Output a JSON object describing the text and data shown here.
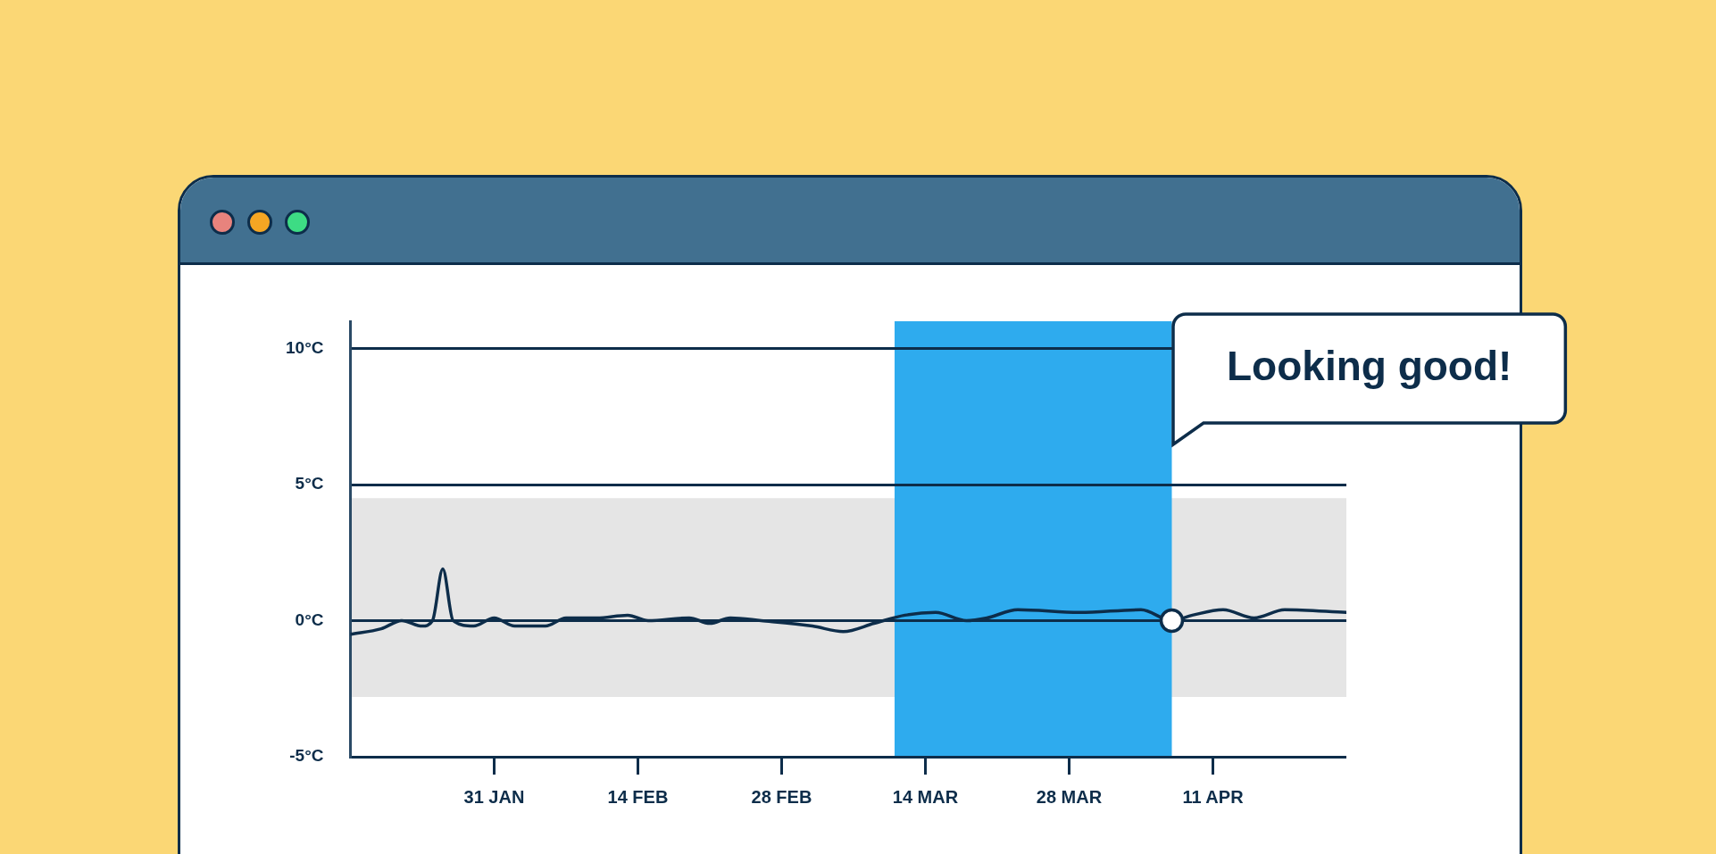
{
  "chart_data": {
    "type": "line",
    "x": [
      "--01-17",
      "--01-20",
      "--01-22",
      "--01-24",
      "--01-25",
      "--01-26",
      "--01-27",
      "--01-29",
      "--01-31",
      "--02-02",
      "--02-05",
      "--02-07",
      "--02-10",
      "--02-13",
      "--02-15",
      "--02-19",
      "--02-21",
      "--02-23",
      "--02-26",
      "--03-03",
      "--03-06",
      "--03-09",
      "--03-12",
      "--03-15",
      "--03-18",
      "--03-20",
      "--03-23",
      "--03-29",
      "--04-04",
      "--04-07",
      "--04-09",
      "--04-12",
      "--04-15",
      "--04-18",
      "--04-24"
    ],
    "series": [
      {
        "type": "scatter",
        "color": "#0d2d4a",
        "x": [
          "--04-07"
        ],
        "values": [
          0
        ]
      },
      {
        "color": "#0d2d4a",
        "values": [
          -0.5,
          -0.3,
          0,
          -0.2,
          0,
          1.9,
          0,
          -0.2,
          0.1,
          -0.2,
          -0.2,
          0.1,
          0.1,
          0.2,
          0,
          0.1,
          -0.1,
          0.1,
          0,
          -0.2,
          -0.4,
          -0.1,
          0.2,
          0.3,
          0,
          0.1,
          0.4,
          0.3,
          0.4,
          0,
          0.2,
          0.4,
          0.1,
          0.4,
          0.3
        ]
      }
    ],
    "xlim": [
      "--01-17",
      "--04-24"
    ],
    "xticks": [
      {
        "value": "--01-31",
        "label": "31 JAN"
      },
      {
        "value": "--02-14",
        "label": "14 FEB"
      },
      {
        "value": "--02-28",
        "label": "28 FEB"
      },
      {
        "value": "--03-14",
        "label": "14 MAR"
      },
      {
        "value": "--03-28",
        "label": "28 MAR"
      },
      {
        "value": "--04-11",
        "label": "11 APR"
      }
    ],
    "ylim": [
      -5,
      11
    ],
    "yticks": [
      {
        "value": -5,
        "label": "-5°C"
      },
      {
        "value": 0,
        "label": "0°C"
      },
      {
        "value": 5,
        "label": "5°C"
      },
      {
        "value": 10,
        "label": "10°C"
      }
    ],
    "grid": "y",
    "legend": false,
    "line_style": "solid",
    "bands": [
      {
        "axis": "y",
        "from": -2.8,
        "to": 4.5,
        "color": "#e5e5e5"
      },
      {
        "axis": "x",
        "from": "--03-11",
        "to": "--04-07",
        "color": "#2eabee"
      }
    ],
    "annotations": [
      "Looking good!"
    ]
  }
}
